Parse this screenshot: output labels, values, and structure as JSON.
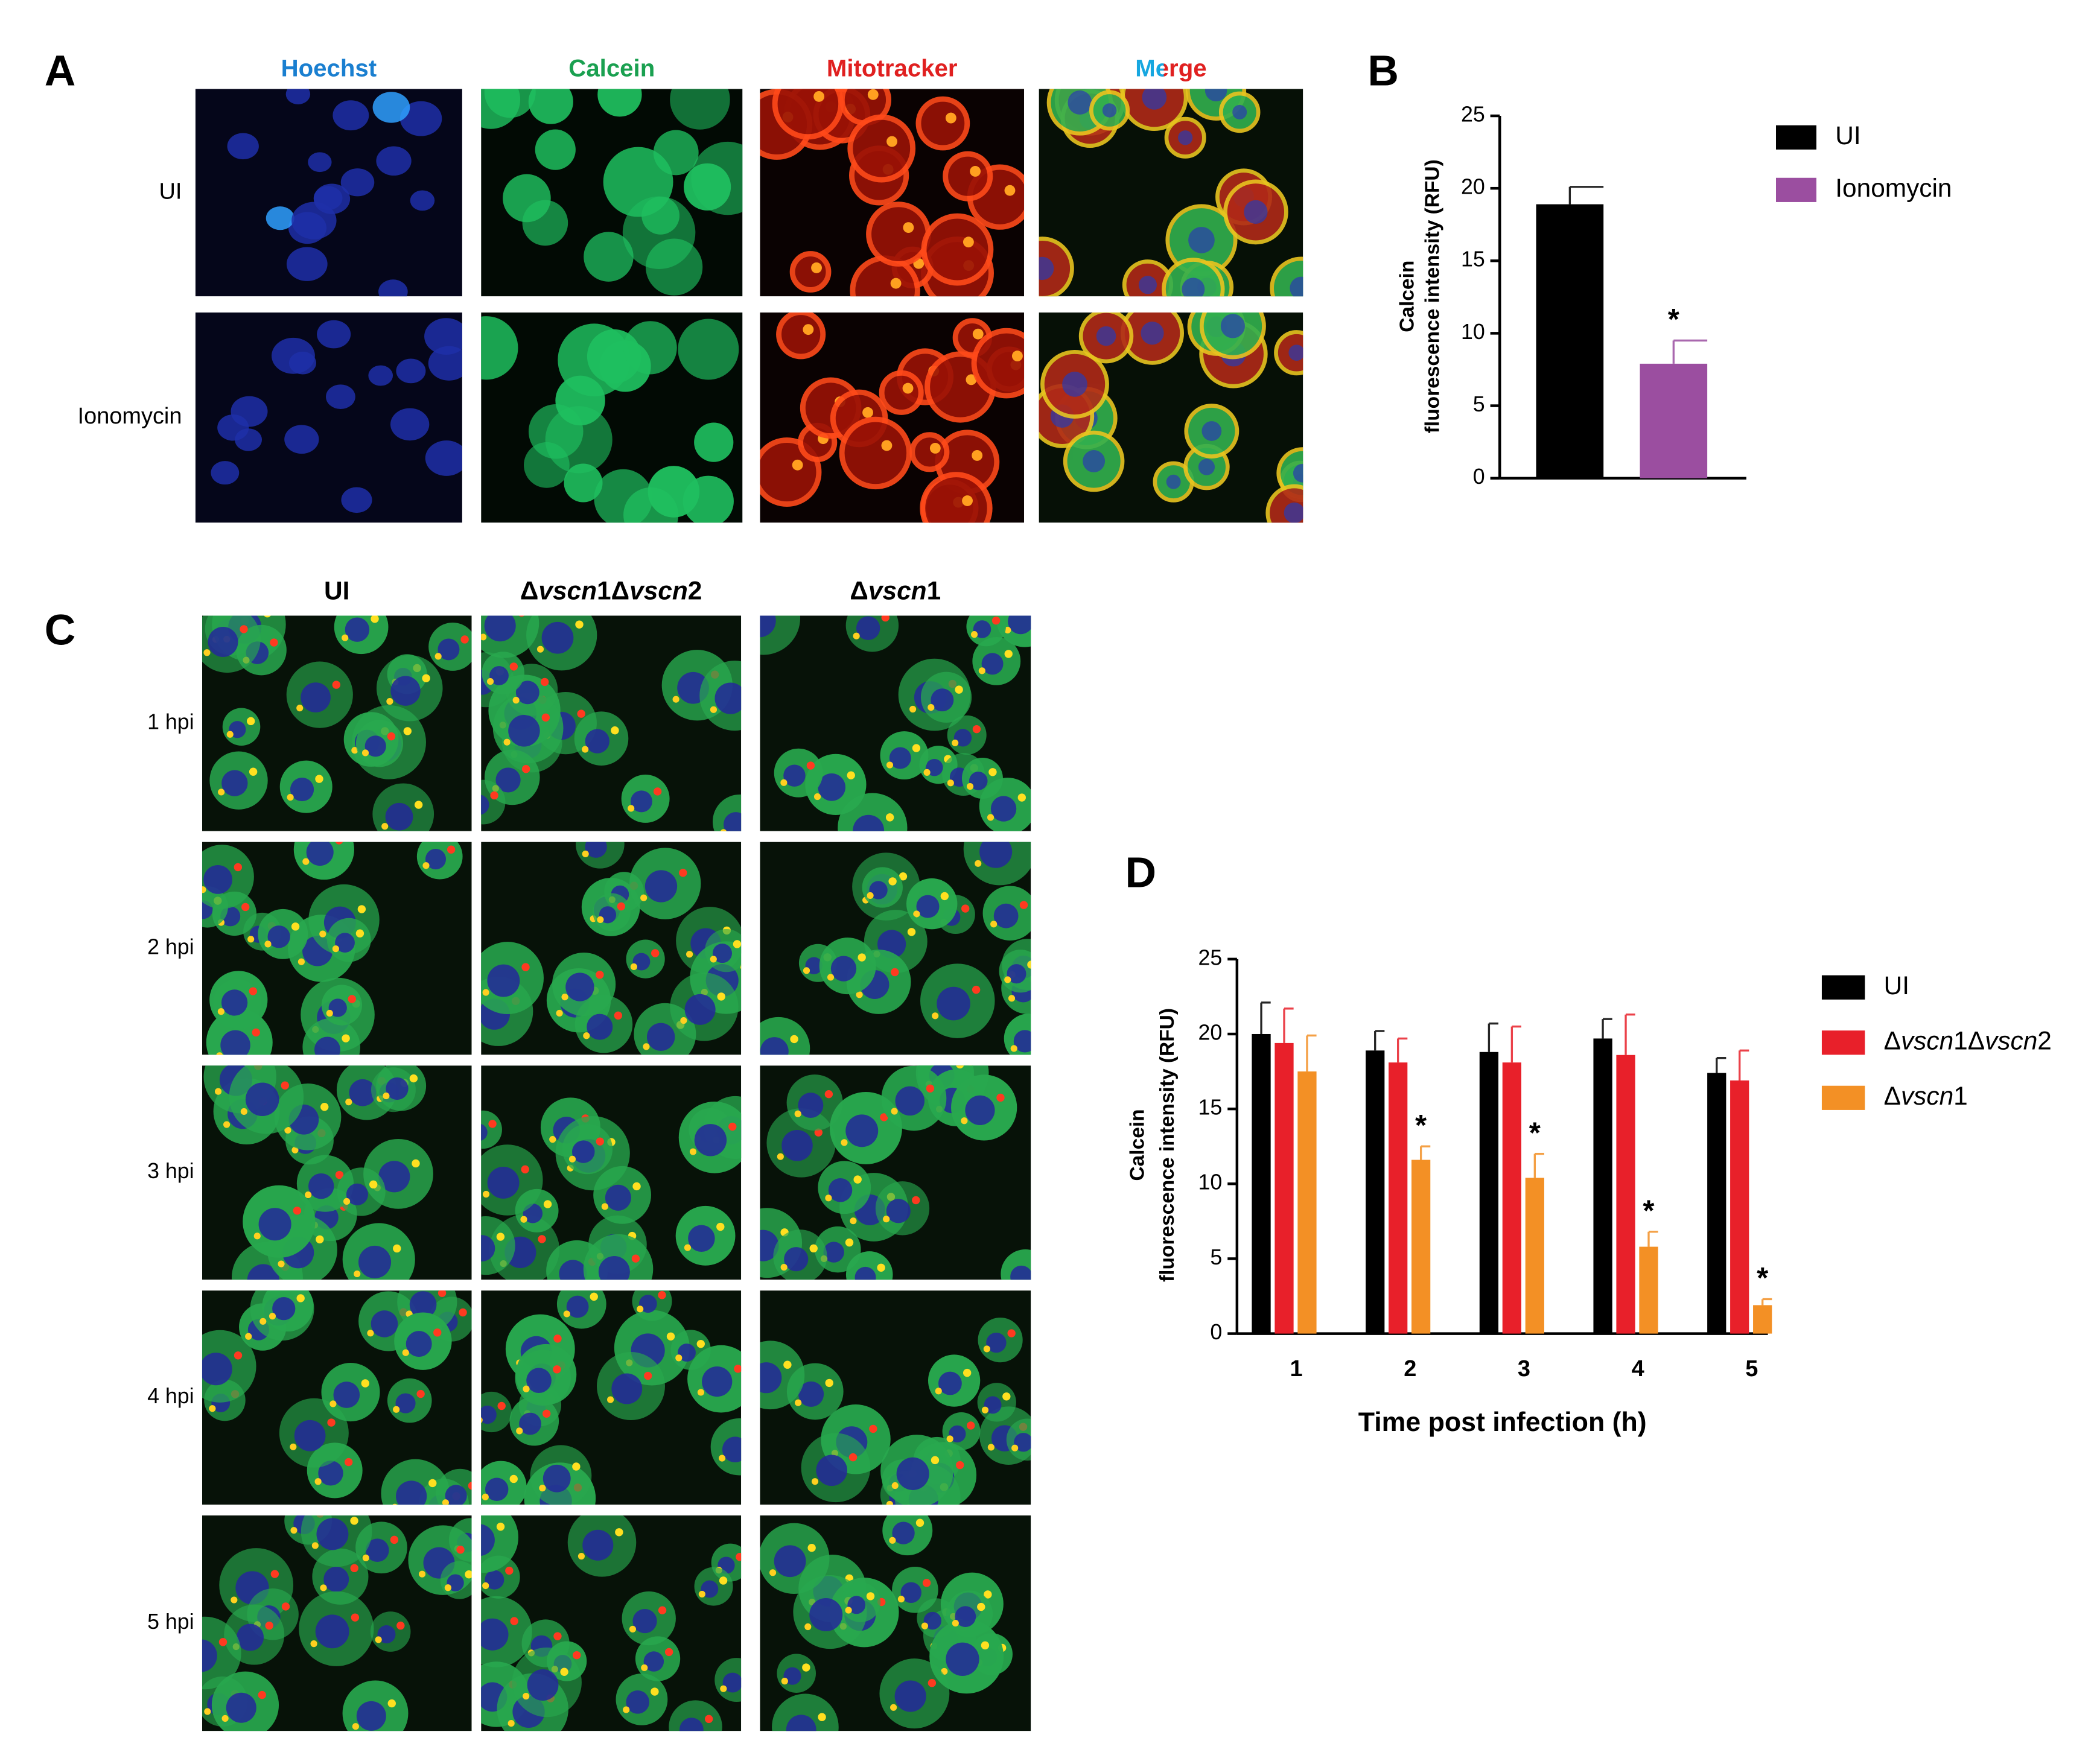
{
  "panel_labels": [
    "A",
    "B",
    "C",
    "D"
  ],
  "panel_a": {
    "columns": [
      "Hoechst",
      "Calcein",
      "Mitotracker",
      "Merge"
    ],
    "rows": [
      "UI",
      "Ionomycin"
    ]
  },
  "panel_c": {
    "columns": [
      "UI",
      "Δvscn1Δvscn2",
      "Δvscn1"
    ],
    "rows": [
      "1 hpi",
      "2 hpi",
      "3 hpi",
      "4 hpi",
      "5 hpi"
    ]
  },
  "chart_data": [
    {
      "type": "bar",
      "ylabel": [
        "Calcein",
        "fluorescence intensity (RFU)"
      ],
      "ylim": [
        0,
        25
      ],
      "yticks": [
        0,
        5,
        10,
        15,
        20,
        25
      ],
      "legend": "right",
      "series": [
        {
          "name": "UI",
          "color": "#000000",
          "values": [
            18.9
          ],
          "errors": [
            1.2
          ],
          "markers": [
            null
          ]
        },
        {
          "name": "Ionomycin",
          "color": "#9b4ea0",
          "values": [
            7.9
          ],
          "errors": [
            1.6
          ],
          "markers": [
            "*"
          ]
        }
      ]
    },
    {
      "type": "bar",
      "xlabel": "Time post infection (h)",
      "ylabel": [
        "Calcein",
        "fluorescence intensity  (RFU)"
      ],
      "categories": [
        "1",
        "2",
        "3",
        "4",
        "5"
      ],
      "ylim": [
        0,
        25
      ],
      "yticks": [
        0,
        5,
        10,
        15,
        20,
        25
      ],
      "legend": "right",
      "series": [
        {
          "name": "UI",
          "color": "#000000",
          "values": [
            20.0,
            18.9,
            18.8,
            19.7,
            17.4
          ],
          "errors": [
            2.1,
            1.3,
            1.9,
            1.3,
            1.0
          ],
          "markers": [
            null,
            null,
            null,
            null,
            null
          ]
        },
        {
          "name": "Δvscn1Δvscn2",
          "color": "#e8202a",
          "values": [
            19.4,
            18.1,
            18.1,
            18.6,
            16.9
          ],
          "errors": [
            2.3,
            1.6,
            2.4,
            2.7,
            2.0
          ],
          "markers": [
            null,
            null,
            null,
            null,
            null
          ]
        },
        {
          "name": "Δvscn1",
          "color": "#f39025",
          "values": [
            17.5,
            11.6,
            10.4,
            5.8,
            1.9
          ],
          "errors": [
            2.4,
            0.9,
            1.6,
            1.0,
            0.4
          ],
          "markers": [
            null,
            "*",
            "*",
            "*",
            "*"
          ]
        }
      ]
    }
  ]
}
